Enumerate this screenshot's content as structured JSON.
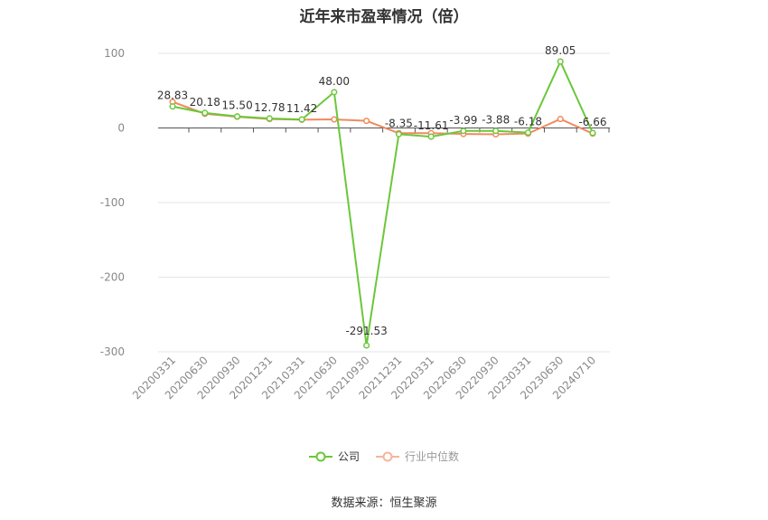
{
  "chart_data": {
    "type": "line",
    "title": "近年来市盈率情况（倍）",
    "categories": [
      "20200331",
      "20200630",
      "20200930",
      "20201231",
      "20210331",
      "20210630",
      "20210930",
      "20211231",
      "20220331",
      "20220630",
      "20220930",
      "20230331",
      "20230630",
      "20240710"
    ],
    "series": [
      {
        "name": "公司",
        "color": "#6bc73a",
        "values": [
          28.83,
          20.18,
          15.5,
          12.78,
          11.42,
          48.0,
          -291.53,
          -8.35,
          -11.61,
          -3.99,
          -3.88,
          -6.18,
          89.05,
          -6.66
        ],
        "labels": [
          "28.83",
          "20.18",
          "15.50",
          "12.78",
          "11.42",
          "48.00",
          "-291.53",
          "-8.35",
          "-11.61",
          "-3.99",
          "-3.88",
          "-6.18",
          "89.05",
          "-6.66"
        ]
      },
      {
        "name": "行业中位数",
        "color": "#f08a5d",
        "values": [
          35,
          19,
          15,
          12,
          11,
          11.5,
          9.5,
          -7,
          -7,
          -8,
          -8.5,
          -7.5,
          12,
          -7.5
        ]
      }
    ],
    "yticks": [
      100,
      0,
      -100,
      -200,
      -300
    ],
    "ylim": [
      -300,
      100
    ],
    "grid": true,
    "legend_position": "bottom"
  },
  "source": "数据来源：恒生聚源"
}
